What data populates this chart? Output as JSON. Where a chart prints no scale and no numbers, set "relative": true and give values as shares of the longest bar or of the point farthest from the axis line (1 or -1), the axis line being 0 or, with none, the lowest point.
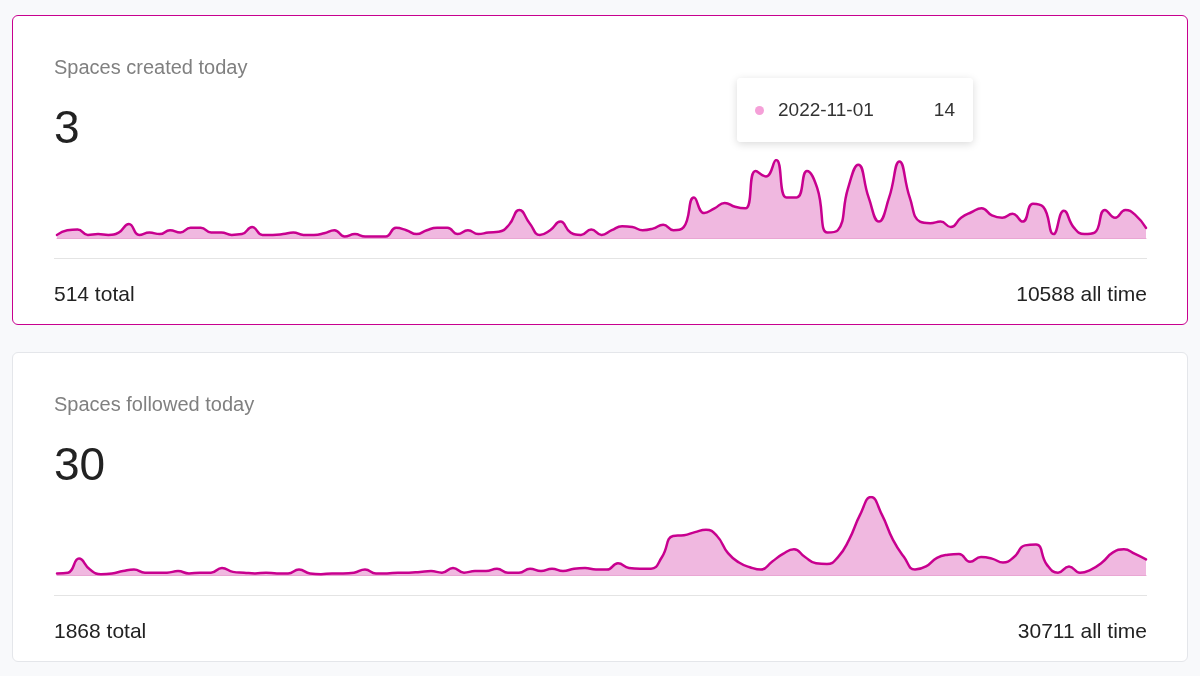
{
  "chart_data": [
    {
      "type": "area",
      "title": "Spaces created today",
      "relative": true,
      "marker": "none",
      "line_style": "solid",
      "annotations": [
        "3",
        "514 total",
        "10588 all time",
        "2022-11-01",
        "14"
      ],
      "categories": [
        null,
        null,
        null,
        null,
        null,
        null,
        null,
        null,
        null,
        null,
        null,
        null,
        null,
        null,
        null,
        null,
        null,
        null,
        null,
        null,
        null,
        null,
        null,
        null,
        null,
        null,
        null,
        null,
        null,
        null,
        null,
        null,
        null,
        null,
        null,
        null,
        null,
        null,
        null,
        null,
        null,
        null,
        null,
        null,
        null,
        null,
        null,
        null,
        null,
        null,
        null,
        null,
        null,
        null,
        null,
        null,
        null,
        null,
        null,
        null,
        null,
        null,
        null,
        null,
        null,
        null,
        null,
        null,
        null,
        null,
        null,
        null,
        null,
        null,
        null,
        null,
        null,
        null,
        null,
        null,
        null,
        null,
        null,
        null,
        null,
        null,
        null,
        null,
        null,
        null,
        null,
        null,
        null,
        null,
        null,
        null,
        null,
        null,
        null,
        null,
        null,
        null,
        null,
        null,
        null,
        null,
        null
      ],
      "series": [
        {
          "color": "#c8008f",
          "values": [
            0.04,
            0.1,
            0.11,
            0.04,
            0.05,
            0.04,
            0.07,
            0.18,
            0.04,
            0.07,
            0.05,
            0.1,
            0.07,
            0.13,
            0.13,
            0.07,
            0.07,
            0.04,
            0.05,
            0.14,
            0.04,
            0.04,
            0.05,
            0.07,
            0.04,
            0.04,
            0.06,
            0.1,
            0.02,
            0.05,
            0.02,
            0.02,
            0.02,
            0.13,
            0.1,
            0.05,
            0.1,
            0.13,
            0.13,
            0.05,
            0.1,
            0.05,
            0.07,
            0.08,
            0.17,
            0.36,
            0.19,
            0.04,
            0.1,
            0.21,
            0.07,
            0.04,
            0.11,
            0.04,
            0.1,
            0.15,
            0.14,
            0.1,
            0.12,
            0.17,
            0.1,
            0.14,
            0.52,
            0.32,
            0.38,
            0.45,
            0.4,
            0.38,
            0.86,
            0.79,
            1,
            0.52,
            0.52,
            0.86,
            0.64,
            0.07,
            0.1,
            0.64,
            0.94,
            0.52,
            0.21,
            0.52,
            0.98,
            0.52,
            0.21,
            0.19,
            0.21,
            0.14,
            0.26,
            0.33,
            0.38,
            0.29,
            0.26,
            0.31,
            0.21,
            0.44,
            0.4,
            0.05,
            0.35,
            0.13,
            0.05,
            0.07,
            0.36,
            0.26,
            0.36,
            0.29,
            0.13
          ]
        }
      ]
    },
    {
      "type": "area",
      "title": "Spaces followed today",
      "relative": true,
      "marker": "none",
      "line_style": "solid",
      "annotations": [
        "30",
        "1868 total",
        "30711 all time"
      ],
      "categories": [
        null,
        null,
        null,
        null,
        null,
        null,
        null,
        null,
        null,
        null,
        null,
        null,
        null,
        null,
        null,
        null,
        null,
        null,
        null,
        null,
        null,
        null,
        null,
        null,
        null,
        null,
        null,
        null,
        null,
        null,
        null,
        null,
        null,
        null,
        null,
        null,
        null,
        null,
        null,
        null,
        null,
        null,
        null,
        null,
        null,
        null,
        null,
        null,
        null,
        null,
        null,
        null,
        null,
        null,
        null,
        null,
        null,
        null,
        null,
        null,
        null,
        null,
        null,
        null,
        null,
        null,
        null,
        null,
        null,
        null,
        null,
        null,
        null,
        null,
        null,
        null,
        null,
        null,
        null,
        null,
        null,
        null,
        null,
        null,
        null,
        null,
        null,
        null,
        null,
        null,
        null,
        null,
        null,
        null,
        null,
        null,
        null,
        null,
        null,
        null
      ],
      "series": [
        {
          "color": "#c8008f",
          "values": [
            0.02,
            0.03,
            0.21,
            0.07,
            0.01,
            0.02,
            0.05,
            0.07,
            0.03,
            0.03,
            0.03,
            0.05,
            0.02,
            0.03,
            0.03,
            0.09,
            0.04,
            0.03,
            0.02,
            0.03,
            0.02,
            0.02,
            0.07,
            0.02,
            0.01,
            0.02,
            0.02,
            0.03,
            0.07,
            0.02,
            0.02,
            0.03,
            0.03,
            0.04,
            0.05,
            0.03,
            0.09,
            0.03,
            0.05,
            0.05,
            0.08,
            0.03,
            0.03,
            0.08,
            0.05,
            0.08,
            0.05,
            0.08,
            0.09,
            0.07,
            0.07,
            0.15,
            0.09,
            0.08,
            0.08,
            0.23,
            0.5,
            0.51,
            0.55,
            0.58,
            0.5,
            0.28,
            0.16,
            0.1,
            0.07,
            0.17,
            0.27,
            0.33,
            0.23,
            0.15,
            0.14,
            0.23,
            0.45,
            0.77,
            1,
            0.77,
            0.45,
            0.23,
            0.07,
            0.11,
            0.22,
            0.26,
            0.27,
            0.17,
            0.23,
            0.21,
            0.16,
            0.23,
            0.38,
            0.39,
            0.13,
            0.03,
            0.11,
            0.03,
            0.07,
            0.16,
            0.29,
            0.33,
            0.27,
            0.2
          ]
        }
      ]
    }
  ]
}
